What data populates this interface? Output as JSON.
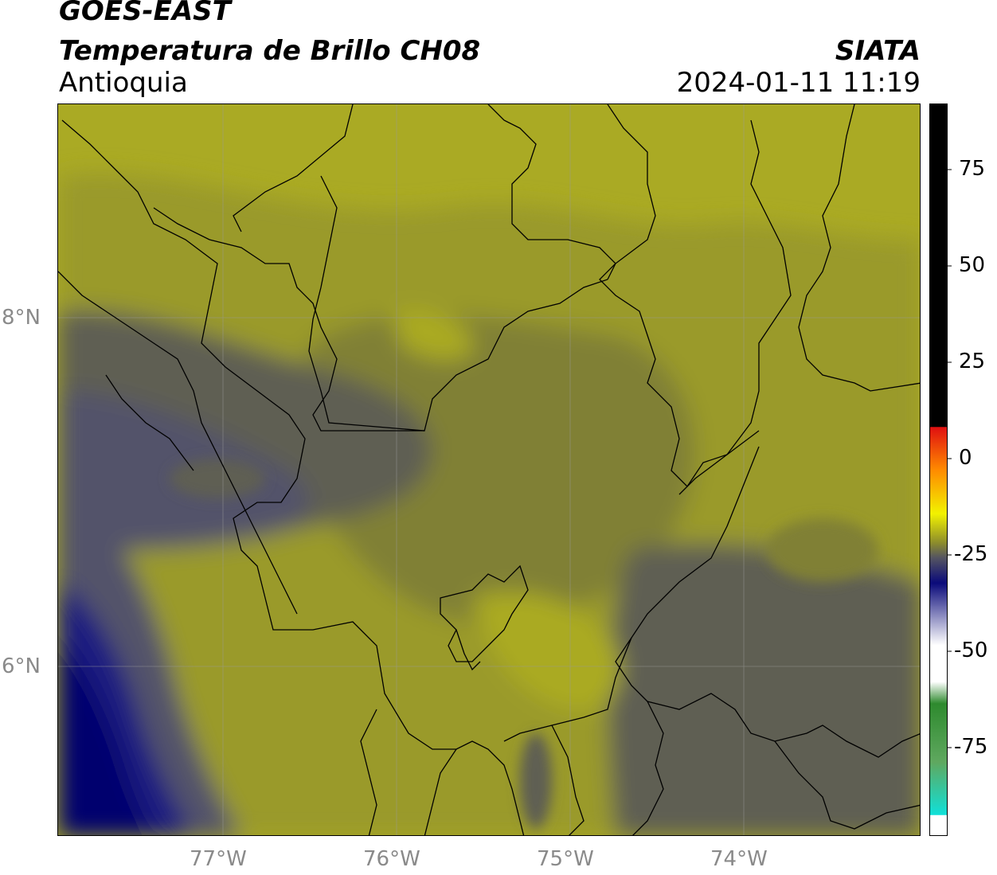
{
  "header": {
    "satellite": "GOES-EAST",
    "product": "Temperatura de Brillo CH08",
    "region": "Antioquia",
    "agency": "SIATA",
    "timestamp": "2024-01-11 11:19"
  },
  "axes": {
    "lat_labels": [
      "8°N",
      "6°N"
    ],
    "lon_labels": [
      "77°W",
      "76°W",
      "75°W",
      "74°W"
    ]
  },
  "colorbar": {
    "ticks": [
      "75",
      "50",
      "25",
      "0",
      "-25",
      "-50",
      "-75"
    ],
    "colors": {
      "black": "#000000",
      "red": "#e01010",
      "orange": "#ff8a00",
      "yellow": "#f2f200",
      "olive": "#8c8c2c",
      "grey": "#555560",
      "navy": "#0a0a7a",
      "white": "#ffffff",
      "green": "#2e8a2e",
      "cyan": "#10e0d8"
    }
  },
  "map": {
    "field_colors": {
      "bright_olive": "#aaaa24",
      "olive": "#9a9a2c",
      "dark_olive": "#808036",
      "grey": "#5e5e52",
      "slate": "#52526a",
      "navy": "#1a1a80",
      "deep_navy": "#05056e"
    }
  }
}
